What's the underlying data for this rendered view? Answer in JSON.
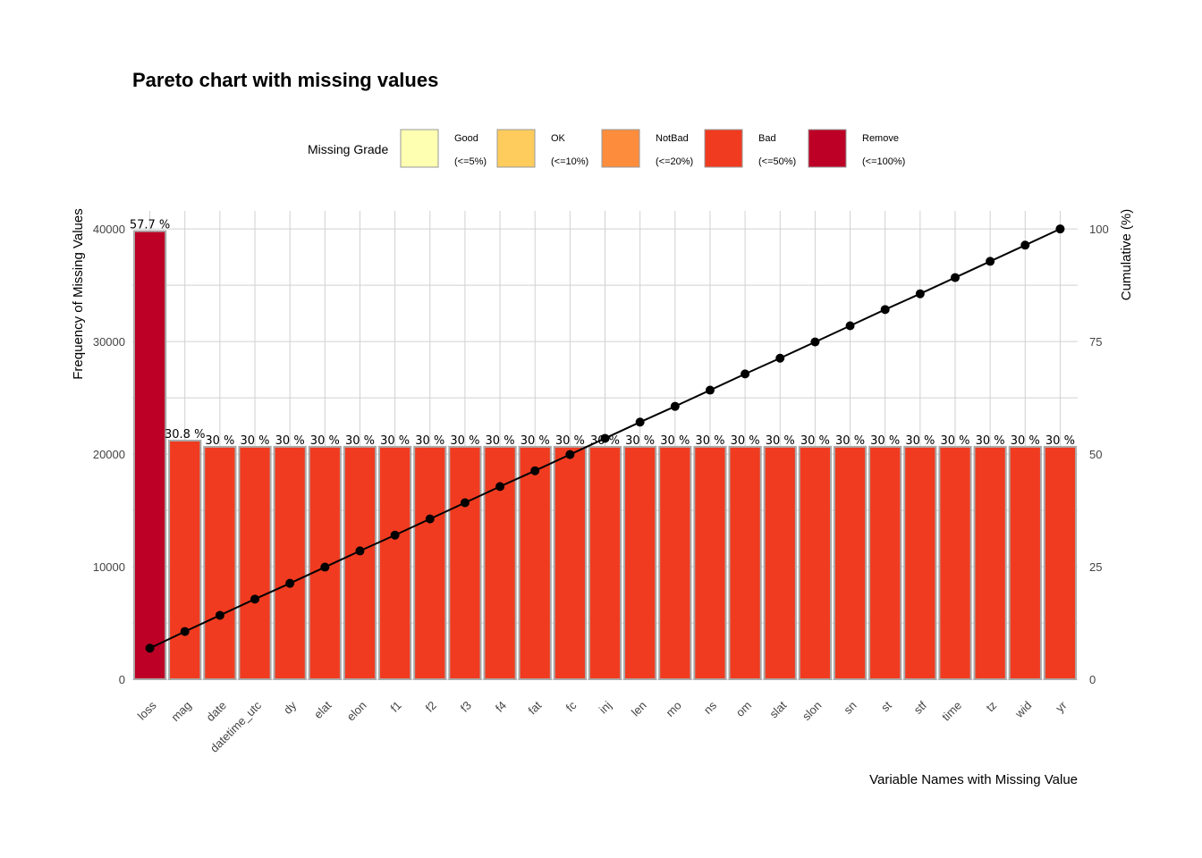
{
  "chart_data": {
    "type": "bar",
    "title": "Pareto chart with missing values",
    "xlabel": "Variable Names with Missing Value",
    "ylabel": "Frequency of Missing Values",
    "y2label": "Cumulative (%)",
    "ylim": [
      0,
      41600
    ],
    "y2lim": [
      0,
      104
    ],
    "yticks": [
      0,
      10000,
      20000,
      30000,
      40000
    ],
    "y2ticks": [
      0,
      25,
      50,
      75,
      100
    ],
    "grid": true,
    "legend": {
      "title": "Missing Grade",
      "placement": "top",
      "items": [
        {
          "name": "Good",
          "range": "(<=5%)",
          "color": "#FFFFB2"
        },
        {
          "name": "OK",
          "range": "(<=10%)",
          "color": "#FECC5C"
        },
        {
          "name": "NotBad",
          "range": "(<=20%)",
          "color": "#FD8D3C"
        },
        {
          "name": "Bad",
          "range": "(<=50%)",
          "color": "#F03B20"
        },
        {
          "name": "Remove",
          "range": "(<=100%)",
          "color": "#BD0026"
        }
      ]
    },
    "categories": [
      "loss",
      "mag",
      "date",
      "datetime_utc",
      "dy",
      "elat",
      "elon",
      "f1",
      "f2",
      "f3",
      "f4",
      "fat",
      "fc",
      "inj",
      "len",
      "mo",
      "ns",
      "om",
      "slat",
      "slon",
      "sn",
      "st",
      "stf",
      "time",
      "tz",
      "wid",
      "yr"
    ],
    "values": [
      39800,
      21200,
      20650,
      20650,
      20650,
      20650,
      20650,
      20650,
      20650,
      20650,
      20650,
      20650,
      20650,
      20650,
      20650,
      20650,
      20650,
      20650,
      20650,
      20650,
      20650,
      20650,
      20650,
      20650,
      20650,
      20650,
      20650
    ],
    "bar_labels": [
      "57.7 %",
      "30.8 %",
      "30 %",
      "30 %",
      "30 %",
      "30 %",
      "30 %",
      "30 %",
      "30 %",
      "30 %",
      "30 %",
      "30 %",
      "30 %",
      "30 %",
      "30 %",
      "30 %",
      "30 %",
      "30 %",
      "30 %",
      "30 %",
      "30 %",
      "30 %",
      "30 %",
      "30 %",
      "30 %",
      "30 %",
      "30 %"
    ],
    "grades": [
      "Remove",
      "Bad",
      "Bad",
      "Bad",
      "Bad",
      "Bad",
      "Bad",
      "Bad",
      "Bad",
      "Bad",
      "Bad",
      "Bad",
      "Bad",
      "Bad",
      "Bad",
      "Bad",
      "Bad",
      "Bad",
      "Bad",
      "Bad",
      "Bad",
      "Bad",
      "Bad",
      "Bad",
      "Bad",
      "Bad",
      "Bad"
    ],
    "cumulative": [
      6.9,
      10.6,
      14.2,
      17.8,
      21.3,
      24.9,
      28.5,
      32.0,
      35.6,
      39.2,
      42.8,
      46.3,
      49.9,
      53.5,
      57.1,
      60.6,
      64.2,
      67.8,
      71.3,
      74.9,
      78.5,
      82.1,
      85.6,
      89.2,
      92.8,
      96.4,
      100.0
    ]
  }
}
